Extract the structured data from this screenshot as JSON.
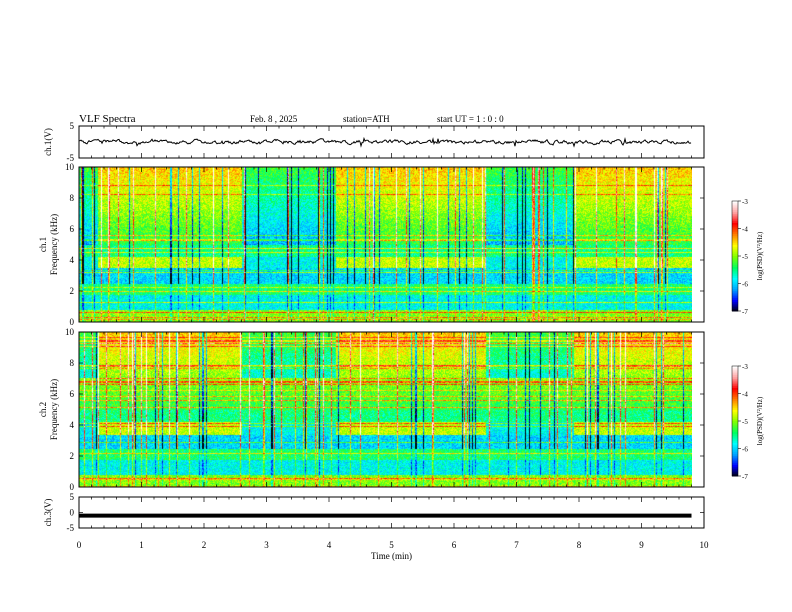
{
  "header": {
    "title": "VLF Spectra",
    "date": "Feb. 8 , 2025",
    "station": "station=ATH",
    "start": "start UT =  1 : 0 : 0"
  },
  "chart_data": {
    "type": "spectrogram",
    "x": {
      "label": "Time (min)",
      "range": [
        0,
        10
      ],
      "ticks": [
        0,
        1,
        2,
        3,
        4,
        5,
        6,
        7,
        8,
        9,
        10
      ]
    },
    "panels": [
      {
        "id": "ch1-waveform",
        "type": "line",
        "ylabel": "ch.1(V)",
        "yrange": [
          -5,
          5
        ],
        "ticks": [
          5,
          -5
        ],
        "data_end_min": 9.8
      },
      {
        "id": "ch1-spectrogram",
        "type": "heatmap",
        "ylabel": "ch.1",
        "ylabel2": "Frequency (kHz)",
        "yrange": [
          0,
          10
        ],
        "ticks": [
          0,
          2,
          4,
          6,
          8,
          10
        ],
        "data_end_min": 9.8,
        "transmitter_band_khz": [
          3.5,
          4.2
        ],
        "transmitter_on_min": [
          [
            0.3,
            2.6
          ],
          [
            4.1,
            6.5
          ],
          [
            7.9,
            9.8
          ]
        ]
      },
      {
        "id": "ch2-spectrogram",
        "type": "heatmap",
        "ylabel": "ch.2",
        "ylabel2": "Frequency (kHz)",
        "yrange": [
          0,
          10
        ],
        "ticks": [
          0,
          2,
          4,
          6,
          8,
          10
        ],
        "data_end_min": 9.8,
        "transmitter_band_khz": [
          3.4,
          4.2
        ],
        "transmitter_on_min": [
          [
            0.3,
            2.6
          ],
          [
            4.1,
            6.5
          ],
          [
            7.9,
            9.8
          ]
        ]
      },
      {
        "id": "ch3-waveform",
        "type": "line",
        "ylabel": "ch.3(V)",
        "yrange": [
          -5,
          5
        ],
        "ticks": [
          5,
          0,
          -5
        ],
        "level": -1,
        "data_end_min": 9.8
      }
    ],
    "colorbar": {
      "label": "log(PSD)(V²/Hz)",
      "range": [
        -7,
        -3
      ],
      "ticks": [
        -3,
        -4,
        -5,
        -6,
        -7
      ],
      "colors": [
        "#000000",
        "#0000ff",
        "#00a0ff",
        "#00ffff",
        "#00ff60",
        "#80ff00",
        "#ffff00",
        "#ff8000",
        "#ff0000",
        "#ffa0a0",
        "#ffffff"
      ]
    }
  }
}
